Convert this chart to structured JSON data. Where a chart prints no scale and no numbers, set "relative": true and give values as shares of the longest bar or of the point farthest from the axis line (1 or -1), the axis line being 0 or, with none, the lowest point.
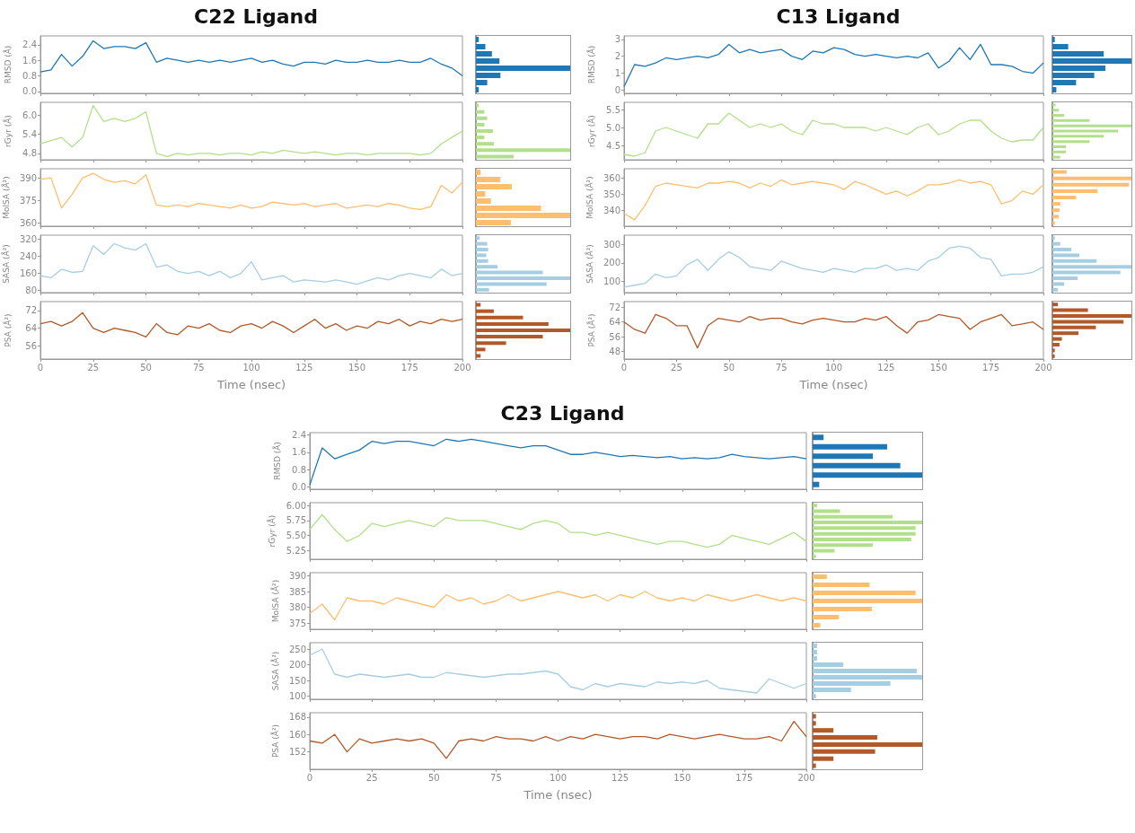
{
  "chart_data": [
    {
      "type": "line",
      "title": "C22 Ligand",
      "ylabel": "RMSD (Å)",
      "color": "#1f77b4",
      "tick_labels": "y",
      "xlim": [
        0,
        200
      ],
      "xticks": [
        0,
        25,
        50,
        75,
        100,
        125,
        150,
        175,
        200
      ],
      "ylim": [
        -0.1,
        2.85
      ],
      "yticks": [
        {
          "value": 0,
          "label": "0.0"
        },
        0.8,
        1.6,
        2.4
      ],
      "x": [
        0,
        5,
        10,
        15,
        20,
        25,
        30,
        35,
        40,
        45,
        50,
        55,
        60,
        65,
        70,
        75,
        80,
        85,
        90,
        95,
        100,
        105,
        110,
        115,
        120,
        125,
        130,
        135,
        140,
        145,
        150,
        155,
        160,
        165,
        170,
        175,
        180,
        185,
        190,
        195,
        200
      ],
      "values": [
        1.0,
        1.1,
        1.9,
        1.3,
        1.8,
        2.6,
        2.2,
        2.3,
        2.3,
        2.2,
        2.5,
        1.5,
        1.7,
        1.6,
        1.5,
        1.6,
        1.5,
        1.6,
        1.5,
        1.6,
        1.7,
        1.5,
        1.6,
        1.4,
        1.3,
        1.5,
        1.5,
        1.4,
        1.6,
        1.5,
        1.5,
        1.6,
        1.5,
        1.5,
        1.6,
        1.5,
        1.5,
        1.7,
        1.4,
        1.2,
        0.8
      ]
    },
    {
      "type": "bar",
      "orientation": "horizontal",
      "relative": true,
      "tick_labels": false,
      "color": "#1f77b4",
      "categories": [
        null,
        null,
        null,
        null,
        null,
        null,
        null,
        null
      ],
      "values": [
        0.03,
        0.1,
        0.17,
        0.25,
        1.0,
        0.26,
        0.12,
        0.03
      ]
    },
    {
      "type": "line",
      "ylabel": "rGyr (Å)",
      "color": "#b2df8a",
      "tick_labels": "y",
      "xlim": [
        0,
        200
      ],
      "xticks": [
        0,
        25,
        50,
        75,
        100,
        125,
        150,
        175,
        200
      ],
      "ylim": [
        4.6,
        6.4
      ],
      "yticks": [
        4.8,
        5.4,
        {
          "value": 6,
          "label": "6.0"
        }
      ],
      "x": [
        0,
        5,
        10,
        15,
        20,
        25,
        30,
        35,
        40,
        45,
        50,
        55,
        60,
        65,
        70,
        75,
        80,
        85,
        90,
        95,
        100,
        105,
        110,
        115,
        120,
        125,
        130,
        135,
        140,
        145,
        150,
        155,
        160,
        165,
        170,
        175,
        180,
        185,
        190,
        195,
        200
      ],
      "values": [
        5.1,
        5.2,
        5.3,
        5.0,
        5.3,
        6.3,
        5.8,
        5.9,
        5.8,
        5.9,
        6.1,
        4.8,
        4.7,
        4.8,
        4.75,
        4.8,
        4.8,
        4.75,
        4.8,
        4.8,
        4.75,
        4.85,
        4.8,
        4.9,
        4.85,
        4.8,
        4.85,
        4.8,
        4.75,
        4.8,
        4.8,
        4.75,
        4.8,
        4.8,
        4.8,
        4.8,
        4.75,
        4.8,
        5.1,
        5.3,
        5.5
      ]
    },
    {
      "type": "bar",
      "orientation": "horizontal",
      "relative": true,
      "tick_labels": false,
      "color": "#b2df8a",
      "categories": [
        null,
        null,
        null,
        null,
        null,
        null,
        null,
        null,
        null
      ],
      "values": [
        0.03,
        0.09,
        0.12,
        0.09,
        0.18,
        0.09,
        0.19,
        1.0,
        0.4
      ]
    },
    {
      "type": "line",
      "ylabel": "MolSA (Å²)",
      "color": "#fdbf6f",
      "tick_labels": "y",
      "xlim": [
        0,
        200
      ],
      "xticks": [
        0,
        25,
        50,
        75,
        100,
        125,
        150,
        175,
        200
      ],
      "ylim": [
        358,
        396
      ],
      "yticks": [
        360,
        375,
        390
      ],
      "x": [
        0,
        5,
        10,
        15,
        20,
        25,
        30,
        35,
        40,
        45,
        50,
        55,
        60,
        65,
        70,
        75,
        80,
        85,
        90,
        95,
        100,
        105,
        110,
        115,
        120,
        125,
        130,
        135,
        140,
        145,
        150,
        155,
        160,
        165,
        170,
        175,
        180,
        185,
        190,
        195,
        200
      ],
      "values": [
        389,
        390,
        370,
        379,
        390,
        393,
        389,
        387,
        388,
        386,
        392,
        372,
        371,
        372,
        371,
        373,
        372,
        371,
        370,
        372,
        370,
        371,
        374,
        373,
        372,
        373,
        371,
        372,
        373,
        370,
        371,
        372,
        371,
        373,
        372,
        370,
        369,
        371,
        385,
        380,
        387
      ]
    },
    {
      "type": "bar",
      "orientation": "horizontal",
      "relative": true,
      "tick_labels": false,
      "color": "#fdbf6f",
      "categories": [
        null,
        null,
        null,
        null,
        null,
        null,
        null,
        null
      ],
      "values": [
        0.05,
        0.26,
        0.38,
        0.1,
        0.16,
        0.69,
        1.0,
        0.37
      ]
    },
    {
      "type": "line",
      "ylabel": "SASA (Å²)",
      "color": "#a6cee3",
      "tick_labels": "y",
      "xlim": [
        0,
        200
      ],
      "xticks": [
        0,
        25,
        50,
        75,
        100,
        125,
        150,
        175,
        200
      ],
      "ylim": [
        70,
        340
      ],
      "yticks": [
        80,
        160,
        240,
        320
      ],
      "x": [
        0,
        5,
        10,
        15,
        20,
        25,
        30,
        35,
        40,
        45,
        50,
        55,
        60,
        65,
        70,
        75,
        80,
        85,
        90,
        95,
        100,
        105,
        110,
        115,
        120,
        125,
        130,
        135,
        140,
        145,
        150,
        155,
        160,
        165,
        170,
        175,
        180,
        185,
        190,
        195,
        200
      ],
      "values": [
        150,
        140,
        180,
        165,
        170,
        290,
        250,
        300,
        280,
        270,
        300,
        190,
        200,
        170,
        160,
        170,
        150,
        170,
        140,
        160,
        215,
        130,
        140,
        150,
        120,
        130,
        125,
        120,
        130,
        120,
        110,
        125,
        140,
        130,
        150,
        160,
        150,
        140,
        180,
        150,
        160
      ]
    },
    {
      "type": "bar",
      "orientation": "horizontal",
      "relative": true,
      "tick_labels": false,
      "color": "#a6cee3",
      "categories": [
        null,
        null,
        null,
        null,
        null,
        null,
        null,
        null,
        null,
        null
      ],
      "values": [
        0.04,
        0.12,
        0.13,
        0.11,
        0.13,
        0.23,
        0.71,
        1.0,
        0.75,
        0.14
      ]
    },
    {
      "type": "line",
      "ylabel": "PSA (Å²)",
      "xlabel": "Time (nsec)",
      "color": "#b15928",
      "xlim": [
        0,
        200
      ],
      "xticks": [
        0,
        25,
        50,
        75,
        100,
        125,
        150,
        175,
        200
      ],
      "ylim": [
        50,
        76
      ],
      "yticks": [
        56,
        64,
        72
      ],
      "x": [
        0,
        5,
        10,
        15,
        20,
        25,
        30,
        35,
        40,
        45,
        50,
        55,
        60,
        65,
        70,
        75,
        80,
        85,
        90,
        95,
        100,
        105,
        110,
        115,
        120,
        125,
        130,
        135,
        140,
        145,
        150,
        155,
        160,
        165,
        170,
        175,
        180,
        185,
        190,
        195,
        200
      ],
      "values": [
        66,
        67,
        65,
        67,
        71,
        64,
        62,
        64,
        63,
        62,
        60,
        66,
        62,
        61,
        65,
        64,
        66,
        63,
        62,
        65,
        66,
        64,
        67,
        65,
        62,
        65,
        68,
        64,
        66,
        63,
        65,
        64,
        67,
        66,
        68,
        65,
        67,
        66,
        68,
        67,
        68
      ]
    },
    {
      "type": "bar",
      "orientation": "horizontal",
      "relative": true,
      "tick_labels": false,
      "color": "#b15928",
      "categories": [
        null,
        null,
        null,
        null,
        null,
        null,
        null,
        null,
        null
      ],
      "values": [
        0.05,
        0.19,
        0.5,
        0.77,
        1.0,
        0.71,
        0.32,
        0.1,
        0.05
      ]
    },
    {
      "type": "line",
      "title": "C13 Ligand",
      "ylabel": "RMSD (Å)",
      "color": "#1f77b4",
      "tick_labels": "y",
      "xlim": [
        0,
        200
      ],
      "xticks": [
        0,
        25,
        50,
        75,
        100,
        125,
        150,
        175,
        200
      ],
      "ylim": [
        -0.2,
        3.2
      ],
      "yticks": [
        0,
        1,
        2,
        3
      ],
      "x": [
        0,
        5,
        10,
        15,
        20,
        25,
        30,
        35,
        40,
        45,
        50,
        55,
        60,
        65,
        70,
        75,
        80,
        85,
        90,
        95,
        100,
        105,
        110,
        115,
        120,
        125,
        130,
        135,
        140,
        145,
        150,
        155,
        160,
        165,
        170,
        175,
        180,
        185,
        190,
        195,
        200
      ],
      "values": [
        0.2,
        1.5,
        1.4,
        1.6,
        1.9,
        1.8,
        1.9,
        2.0,
        1.9,
        2.1,
        2.7,
        2.2,
        2.4,
        2.2,
        2.3,
        2.4,
        2.0,
        1.8,
        2.3,
        2.2,
        2.5,
        2.4,
        2.1,
        2.0,
        2.1,
        2.0,
        1.9,
        2.0,
        1.9,
        2.2,
        1.3,
        1.7,
        2.5,
        1.8,
        2.7,
        1.5,
        1.5,
        1.4,
        1.1,
        1.0,
        1.6
      ]
    },
    {
      "type": "bar",
      "orientation": "horizontal",
      "relative": true,
      "tick_labels": false,
      "color": "#1f77b4",
      "categories": [
        null,
        null,
        null,
        null,
        null,
        null,
        null,
        null
      ],
      "values": [
        0.03,
        0.2,
        0.65,
        1.0,
        0.67,
        0.53,
        0.3,
        0.05
      ]
    },
    {
      "type": "line",
      "ylabel": "rGyr (Å)",
      "color": "#b2df8a",
      "tick_labels": "y",
      "xlim": [
        0,
        200
      ],
      "xticks": [
        0,
        25,
        50,
        75,
        100,
        125,
        150,
        175,
        200
      ],
      "ylim": [
        4.1,
        5.7
      ],
      "yticks": [
        4.5,
        {
          "value": 5,
          "label": "5.0"
        },
        5.5
      ],
      "x": [
        0,
        5,
        10,
        15,
        20,
        25,
        30,
        35,
        40,
        45,
        50,
        55,
        60,
        65,
        70,
        75,
        80,
        85,
        90,
        95,
        100,
        105,
        110,
        115,
        120,
        125,
        130,
        135,
        140,
        145,
        150,
        155,
        160,
        165,
        170,
        175,
        180,
        185,
        190,
        195,
        200
      ],
      "values": [
        4.25,
        4.2,
        4.3,
        4.9,
        5.0,
        4.9,
        4.8,
        4.7,
        5.1,
        5.1,
        5.4,
        5.2,
        5.0,
        5.1,
        5.0,
        5.1,
        4.9,
        4.8,
        5.2,
        5.1,
        5.1,
        5.0,
        5.0,
        5.0,
        4.9,
        5.0,
        4.9,
        4.8,
        5.0,
        5.1,
        4.8,
        4.9,
        5.1,
        5.2,
        5.2,
        4.9,
        4.7,
        4.6,
        4.65,
        4.65,
        5.0
      ]
    },
    {
      "type": "bar",
      "orientation": "horizontal",
      "relative": true,
      "tick_labels": false,
      "color": "#b2df8a",
      "categories": [
        null,
        null,
        null,
        null,
        null,
        null,
        null,
        null,
        null,
        null,
        null
      ],
      "values": [
        0.04,
        0.08,
        0.15,
        0.47,
        1.0,
        0.83,
        0.65,
        0.47,
        0.17,
        0.17,
        0.1
      ]
    },
    {
      "type": "line",
      "ylabel": "MolSA (Å²)",
      "color": "#fdbf6f",
      "tick_labels": "y",
      "xlim": [
        0,
        200
      ],
      "xticks": [
        0,
        25,
        50,
        75,
        100,
        125,
        150,
        175,
        200
      ],
      "ylim": [
        330,
        366
      ],
      "yticks": [
        340,
        350,
        360
      ],
      "x": [
        0,
        5,
        10,
        15,
        20,
        25,
        30,
        35,
        40,
        45,
        50,
        55,
        60,
        65,
        70,
        75,
        80,
        85,
        90,
        95,
        100,
        105,
        110,
        115,
        120,
        125,
        130,
        135,
        140,
        145,
        150,
        155,
        160,
        165,
        170,
        175,
        180,
        185,
        190,
        195,
        200
      ],
      "values": [
        338,
        334,
        343,
        355,
        357,
        356,
        355,
        354,
        357,
        357,
        358,
        357,
        354,
        357,
        355,
        359,
        356,
        357,
        358,
        357,
        356,
        353,
        358,
        356,
        353,
        350,
        352,
        349,
        352,
        356,
        356,
        357,
        359,
        357,
        358,
        356,
        344,
        346,
        352,
        350,
        356
      ]
    },
    {
      "type": "bar",
      "orientation": "horizontal",
      "relative": true,
      "tick_labels": false,
      "color": "#fdbf6f",
      "categories": [
        null,
        null,
        null,
        null,
        null,
        null,
        null,
        null,
        null
      ],
      "values": [
        0.18,
        1.0,
        0.97,
        0.57,
        0.3,
        0.1,
        0.09,
        0.08,
        0.03
      ]
    },
    {
      "type": "line",
      "ylabel": "SASA (Å²)",
      "color": "#a6cee3",
      "tick_labels": "y",
      "xlim": [
        0,
        200
      ],
      "xticks": [
        0,
        25,
        50,
        75,
        100,
        125,
        150,
        175,
        200
      ],
      "ylim": [
        40,
        350
      ],
      "yticks": [
        100,
        200,
        300
      ],
      "x": [
        0,
        5,
        10,
        15,
        20,
        25,
        30,
        35,
        40,
        45,
        50,
        55,
        60,
        65,
        70,
        75,
        80,
        85,
        90,
        95,
        100,
        105,
        110,
        115,
        120,
        125,
        130,
        135,
        140,
        145,
        150,
        155,
        160,
        165,
        170,
        175,
        180,
        185,
        190,
        195,
        200
      ],
      "values": [
        70,
        80,
        90,
        140,
        120,
        130,
        190,
        220,
        160,
        220,
        260,
        230,
        180,
        170,
        160,
        210,
        190,
        170,
        160,
        150,
        170,
        160,
        150,
        170,
        170,
        190,
        160,
        170,
        160,
        210,
        230,
        280,
        290,
        280,
        230,
        220,
        130,
        140,
        140,
        150,
        180
      ]
    },
    {
      "type": "bar",
      "orientation": "horizontal",
      "relative": true,
      "tick_labels": false,
      "color": "#a6cee3",
      "categories": [
        null,
        null,
        null,
        null,
        null,
        null,
        null,
        null,
        null,
        null
      ],
      "values": [
        0.03,
        0.1,
        0.24,
        0.34,
        0.56,
        1.0,
        0.86,
        0.32,
        0.15,
        0.07
      ]
    },
    {
      "type": "line",
      "ylabel": "PSA (Å²)",
      "xlabel": "Time (nsec)",
      "color": "#b15928",
      "xlim": [
        0,
        200
      ],
      "xticks": [
        0,
        25,
        50,
        75,
        100,
        125,
        150,
        175,
        200
      ],
      "ylim": [
        44,
        75
      ],
      "yticks": [
        48,
        56,
        64,
        72
      ],
      "x": [
        0,
        5,
        10,
        15,
        20,
        25,
        30,
        35,
        40,
        45,
        50,
        55,
        60,
        65,
        70,
        75,
        80,
        85,
        90,
        95,
        100,
        105,
        110,
        115,
        120,
        125,
        130,
        135,
        140,
        145,
        150,
        155,
        160,
        165,
        170,
        175,
        180,
        185,
        190,
        195,
        200
      ],
      "values": [
        64,
        60,
        58,
        68,
        66,
        62,
        62,
        50,
        62,
        66,
        65,
        64,
        67,
        65,
        66,
        66,
        64,
        63,
        65,
        66,
        65,
        64,
        64,
        66,
        65,
        67,
        62,
        58,
        64,
        65,
        68,
        67,
        66,
        60,
        64,
        66,
        68,
        62,
        63,
        64,
        60
      ]
    },
    {
      "type": "bar",
      "orientation": "horizontal",
      "relative": true,
      "tick_labels": false,
      "color": "#b15928",
      "categories": [
        null,
        null,
        null,
        null,
        null,
        null,
        null,
        null,
        null,
        null
      ],
      "values": [
        0.07,
        0.45,
        1.0,
        0.9,
        0.55,
        0.33,
        0.12,
        0.09,
        0.03,
        0.03
      ]
    },
    {
      "type": "line",
      "title": "C23 Ligand",
      "ylabel": "RMSD (Å)",
      "color": "#1f77b4",
      "tick_labels": "y",
      "xlim": [
        0,
        200
      ],
      "xticks": [
        0,
        25,
        50,
        75,
        100,
        125,
        150,
        175,
        200
      ],
      "ylim": [
        -0.1,
        2.5
      ],
      "yticks": [
        {
          "value": 0,
          "label": "0.0"
        },
        0.8,
        1.6,
        2.4
      ],
      "x": [
        0,
        5,
        10,
        15,
        20,
        25,
        30,
        35,
        40,
        45,
        50,
        55,
        60,
        65,
        70,
        75,
        80,
        85,
        90,
        95,
        100,
        105,
        110,
        115,
        120,
        125,
        130,
        135,
        140,
        145,
        150,
        155,
        160,
        165,
        170,
        175,
        180,
        185,
        190,
        195,
        200
      ],
      "values": [
        0.1,
        1.8,
        1.3,
        1.5,
        1.7,
        2.1,
        2.0,
        2.1,
        2.1,
        2.0,
        1.9,
        2.2,
        2.1,
        2.2,
        2.1,
        2.0,
        1.9,
        1.8,
        1.9,
        1.9,
        1.7,
        1.5,
        1.5,
        1.6,
        1.5,
        1.4,
        1.45,
        1.4,
        1.35,
        1.4,
        1.3,
        1.35,
        1.3,
        1.35,
        1.5,
        1.4,
        1.35,
        1.3,
        1.35,
        1.4,
        1.3
      ]
    },
    {
      "type": "bar",
      "orientation": "horizontal",
      "relative": true,
      "tick_labels": false,
      "color": "#1f77b4",
      "categories": [
        null,
        null,
        null,
        null,
        null,
        null
      ],
      "values": [
        0.1,
        0.68,
        0.55,
        0.8,
        1.0,
        0.06
      ]
    },
    {
      "type": "line",
      "ylabel": "rGyr (Å)",
      "color": "#b2df8a",
      "tick_labels": "y",
      "xlim": [
        0,
        200
      ],
      "xticks": [
        0,
        25,
        50,
        75,
        100,
        125,
        150,
        175,
        200
      ],
      "ylim": [
        5.1,
        6.05
      ],
      "yticks": [
        5.25,
        {
          "value": 5.5,
          "label": "5.50"
        },
        5.75,
        {
          "value": 6,
          "label": "6.00"
        }
      ],
      "x": [
        0,
        5,
        10,
        15,
        20,
        25,
        30,
        35,
        40,
        45,
        50,
        55,
        60,
        65,
        70,
        75,
        80,
        85,
        90,
        95,
        100,
        105,
        110,
        115,
        120,
        125,
        130,
        135,
        140,
        145,
        150,
        155,
        160,
        165,
        170,
        175,
        180,
        185,
        190,
        195,
        200
      ],
      "values": [
        5.6,
        5.85,
        5.6,
        5.4,
        5.5,
        5.7,
        5.65,
        5.7,
        5.75,
        5.7,
        5.65,
        5.8,
        5.75,
        5.75,
        5.75,
        5.7,
        5.65,
        5.6,
        5.7,
        5.75,
        5.7,
        5.55,
        5.55,
        5.5,
        5.55,
        5.5,
        5.45,
        5.4,
        5.35,
        5.4,
        5.4,
        5.35,
        5.3,
        5.35,
        5.5,
        5.45,
        5.4,
        5.35,
        5.45,
        5.55,
        5.4
      ]
    },
    {
      "type": "bar",
      "orientation": "horizontal",
      "relative": true,
      "tick_labels": false,
      "color": "#b2df8a",
      "categories": [
        null,
        null,
        null,
        null,
        null,
        null,
        null,
        null,
        null,
        null
      ],
      "values": [
        0.04,
        0.25,
        0.73,
        1.0,
        0.94,
        0.94,
        0.9,
        0.55,
        0.2,
        0.03
      ]
    },
    {
      "type": "line",
      "ylabel": "MolSA (Å²)",
      "color": "#fdbf6f",
      "tick_labels": "y",
      "xlim": [
        0,
        200
      ],
      "xticks": [
        0,
        25,
        50,
        75,
        100,
        125,
        150,
        175,
        200
      ],
      "ylim": [
        373,
        391
      ],
      "yticks": [
        375,
        380,
        385,
        390
      ],
      "x": [
        0,
        5,
        10,
        15,
        20,
        25,
        30,
        35,
        40,
        45,
        50,
        55,
        60,
        65,
        70,
        75,
        80,
        85,
        90,
        95,
        100,
        105,
        110,
        115,
        120,
        125,
        130,
        135,
        140,
        145,
        150,
        155,
        160,
        165,
        170,
        175,
        180,
        185,
        190,
        195,
        200
      ],
      "values": [
        378,
        381,
        376,
        383,
        382,
        382,
        381,
        383,
        382,
        381,
        380,
        384,
        382,
        383,
        381,
        382,
        384,
        382,
        383,
        384,
        385,
        384,
        383,
        384,
        382,
        384,
        383,
        385,
        383,
        382,
        383,
        382,
        384,
        383,
        382,
        383,
        384,
        383,
        382,
        383,
        382
      ]
    },
    {
      "type": "bar",
      "orientation": "horizontal",
      "relative": true,
      "tick_labels": false,
      "color": "#fdbf6f",
      "categories": [
        null,
        null,
        null,
        null,
        null,
        null,
        null
      ],
      "values": [
        0.13,
        0.52,
        0.94,
        1.0,
        0.54,
        0.24,
        0.07
      ]
    },
    {
      "type": "line",
      "ylabel": "SASA (Å²)",
      "color": "#a6cee3",
      "tick_labels": "y",
      "xlim": [
        0,
        200
      ],
      "xticks": [
        0,
        25,
        50,
        75,
        100,
        125,
        150,
        175,
        200
      ],
      "ylim": [
        90,
        270
      ],
      "yticks": [
        100,
        150,
        200,
        250
      ],
      "x": [
        0,
        5,
        10,
        15,
        20,
        25,
        30,
        35,
        40,
        45,
        50,
        55,
        60,
        65,
        70,
        75,
        80,
        85,
        90,
        95,
        100,
        105,
        110,
        115,
        120,
        125,
        130,
        135,
        140,
        145,
        150,
        155,
        160,
        165,
        170,
        175,
        180,
        185,
        190,
        195,
        200
      ],
      "values": [
        230,
        250,
        170,
        160,
        170,
        165,
        160,
        165,
        170,
        160,
        160,
        175,
        170,
        165,
        160,
        165,
        170,
        170,
        175,
        180,
        170,
        130,
        120,
        140,
        130,
        140,
        135,
        130,
        145,
        140,
        145,
        140,
        150,
        125,
        120,
        115,
        110,
        155,
        140,
        125,
        140
      ]
    },
    {
      "type": "bar",
      "orientation": "horizontal",
      "relative": true,
      "tick_labels": false,
      "color": "#a6cee3",
      "categories": [
        null,
        null,
        null,
        null,
        null,
        null,
        null,
        null,
        null
      ],
      "values": [
        0.04,
        0.04,
        0.04,
        0.28,
        0.95,
        1.0,
        0.71,
        0.35,
        0.03
      ]
    },
    {
      "type": "line",
      "ylabel": "PSA (Å²)",
      "xlabel": "Time (nsec)",
      "color": "#b15928",
      "xlim": [
        0,
        200
      ],
      "xticks": [
        0,
        25,
        50,
        75,
        100,
        125,
        150,
        175,
        200
      ],
      "ylim": [
        144,
        170
      ],
      "yticks": [
        152,
        160,
        168
      ],
      "x": [
        0,
        5,
        10,
        15,
        20,
        25,
        30,
        35,
        40,
        45,
        50,
        55,
        60,
        65,
        70,
        75,
        80,
        85,
        90,
        95,
        100,
        105,
        110,
        115,
        120,
        125,
        130,
        135,
        140,
        145,
        150,
        155,
        160,
        165,
        170,
        175,
        180,
        185,
        190,
        195,
        200
      ],
      "values": [
        157,
        156,
        160,
        152,
        158,
        156,
        157,
        158,
        157,
        158,
        156,
        149,
        157,
        158,
        157,
        159,
        158,
        158,
        157,
        159,
        157,
        159,
        158,
        160,
        159,
        158,
        159,
        159,
        158,
        160,
        159,
        158,
        159,
        160,
        159,
        158,
        158,
        159,
        157,
        166,
        159
      ]
    },
    {
      "type": "bar",
      "orientation": "horizontal",
      "relative": true,
      "tick_labels": false,
      "color": "#b15928",
      "categories": [
        null,
        null,
        null,
        null,
        null,
        null,
        null,
        null
      ],
      "values": [
        0.03,
        0.03,
        0.19,
        0.59,
        1.0,
        0.57,
        0.19,
        0.03
      ]
    }
  ]
}
